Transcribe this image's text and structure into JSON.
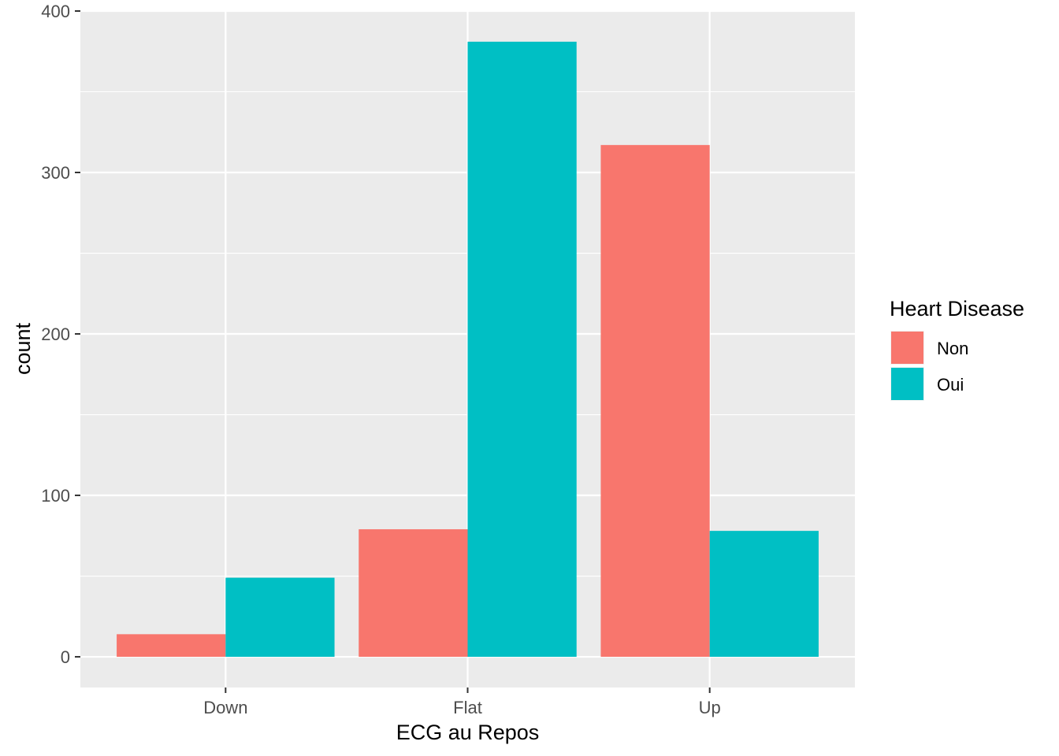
{
  "chart_data": {
    "type": "bar",
    "categories": [
      "Down",
      "Flat",
      "Up"
    ],
    "series": [
      {
        "name": "Non",
        "values": [
          14,
          79,
          317
        ],
        "color": "#F8766D"
      },
      {
        "name": "Oui",
        "values": [
          49,
          381,
          78
        ],
        "color": "#00BFC4"
      }
    ],
    "xlabel": "ECG au Repos",
    "ylabel": "count",
    "ylim": [
      -19,
      400
    ],
    "yticks": [
      0,
      100,
      200,
      300,
      400
    ],
    "ytick_labels": [
      "0",
      "100",
      "200",
      "300",
      "400"
    ],
    "legend_title": "Heart Disease",
    "legend_position": "right",
    "grid": true,
    "panel_background": "#EBEBEB",
    "grid_color": "#FFFFFF"
  }
}
